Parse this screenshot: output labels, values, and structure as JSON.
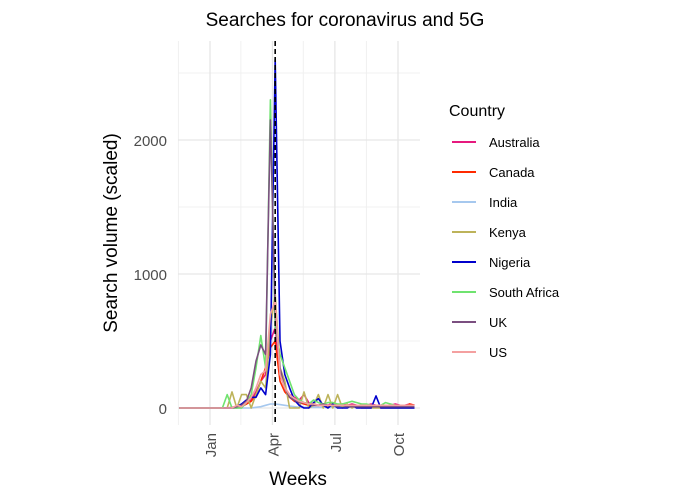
{
  "chart_data": {
    "type": "line",
    "title": "Searches for coronavirus and 5G",
    "xlabel": "Weeks",
    "ylabel": "Search volume (scaled)",
    "x_ticks": [
      {
        "label": "Jan",
        "date": "2020-01-01"
      },
      {
        "label": "Apr",
        "date": "2020-04-01"
      },
      {
        "label": "Jul",
        "date": "2020-07-01"
      },
      {
        "label": "Oct",
        "date": "2020-10-01"
      }
    ],
    "y_ticks": [
      0,
      1000,
      2000
    ],
    "ylim": [
      0,
      2600
    ],
    "xlim": [
      "2019-11-17",
      "2020-10-25"
    ],
    "grid": true,
    "vline": {
      "date": "2020-04-05",
      "style": "dashed",
      "color": "#000000"
    },
    "legend": {
      "title": "Country",
      "position": "right"
    },
    "x": [
      "2019-11-17",
      "2019-11-24",
      "2019-12-01",
      "2019-12-08",
      "2019-12-15",
      "2019-12-22",
      "2019-12-29",
      "2020-01-05",
      "2020-01-12",
      "2020-01-19",
      "2020-01-26",
      "2020-02-02",
      "2020-02-09",
      "2020-02-16",
      "2020-02-23",
      "2020-03-01",
      "2020-03-08",
      "2020-03-15",
      "2020-03-22",
      "2020-03-29",
      "2020-04-05",
      "2020-04-12",
      "2020-04-19",
      "2020-04-26",
      "2020-05-03",
      "2020-05-10",
      "2020-05-17",
      "2020-05-24",
      "2020-05-31",
      "2020-06-07",
      "2020-06-14",
      "2020-06-21",
      "2020-06-28",
      "2020-07-05",
      "2020-07-12",
      "2020-07-19",
      "2020-07-26",
      "2020-08-02",
      "2020-08-09",
      "2020-08-16",
      "2020-08-23",
      "2020-08-30",
      "2020-09-06",
      "2020-09-13",
      "2020-09-20",
      "2020-09-27",
      "2020-10-04",
      "2020-10-11",
      "2020-10-18",
      "2020-10-25"
    ],
    "series": [
      {
        "name": "Australia",
        "color": "#e6197e",
        "values": [
          0,
          0,
          0,
          0,
          0,
          0,
          0,
          0,
          0,
          0,
          0,
          5,
          10,
          20,
          40,
          60,
          120,
          200,
          250,
          500,
          600,
          250,
          150,
          100,
          80,
          60,
          100,
          40,
          30,
          20,
          30,
          20,
          40,
          20,
          30,
          20,
          30,
          20,
          20,
          20,
          30,
          20,
          20,
          20,
          20,
          30,
          20,
          20,
          30,
          20
        ]
      },
      {
        "name": "Canada",
        "color": "#ff2a00",
        "values": [
          0,
          0,
          0,
          0,
          0,
          0,
          0,
          0,
          0,
          0,
          0,
          0,
          0,
          10,
          30,
          50,
          100,
          200,
          300,
          450,
          500,
          200,
          120,
          80,
          50,
          40,
          30,
          20,
          20,
          20,
          20,
          10,
          20,
          10,
          20,
          10,
          10,
          10,
          10,
          10,
          10,
          10,
          10,
          10,
          10,
          10,
          10,
          10,
          30,
          20
        ]
      },
      {
        "name": "India",
        "color": "#a6c8ee",
        "values": [
          0,
          0,
          0,
          0,
          0,
          0,
          0,
          0,
          0,
          0,
          0,
          0,
          0,
          0,
          0,
          0,
          5,
          10,
          20,
          30,
          30,
          25,
          20,
          15,
          10,
          5,
          5,
          5,
          5,
          5,
          5,
          5,
          5,
          5,
          5,
          5,
          5,
          5,
          5,
          5,
          5,
          5,
          5,
          5,
          5,
          5,
          5,
          5,
          5,
          5
        ]
      },
      {
        "name": "Kenya",
        "color": "#bdb35a",
        "values": [
          0,
          0,
          0,
          0,
          0,
          0,
          0,
          0,
          0,
          0,
          0,
          120,
          0,
          100,
          100,
          0,
          100,
          200,
          150,
          600,
          850,
          300,
          200,
          0,
          0,
          0,
          120,
          0,
          20,
          100,
          0,
          100,
          0,
          100,
          0,
          30,
          0,
          20,
          0,
          0,
          0,
          0,
          0,
          0,
          0,
          0,
          0,
          0,
          0,
          0
        ]
      },
      {
        "name": "Nigeria",
        "color": "#0000cc",
        "values": [
          0,
          0,
          0,
          0,
          0,
          0,
          0,
          0,
          0,
          0,
          0,
          0,
          10,
          30,
          60,
          80,
          80,
          150,
          100,
          400,
          2600,
          500,
          250,
          150,
          60,
          20,
          0,
          0,
          40,
          70,
          20,
          0,
          30,
          0,
          0,
          0,
          20,
          0,
          0,
          0,
          0,
          90,
          0,
          0,
          0,
          0,
          0,
          0,
          0,
          0
        ]
      },
      {
        "name": "South Africa",
        "color": "#6fe36f",
        "values": [
          0,
          0,
          0,
          0,
          0,
          0,
          0,
          0,
          0,
          0,
          100,
          0,
          0,
          0,
          40,
          100,
          300,
          540,
          300,
          2300,
          600,
          400,
          300,
          200,
          100,
          60,
          40,
          30,
          60,
          40,
          30,
          40,
          40,
          30,
          30,
          40,
          50,
          40,
          30,
          30,
          20,
          20,
          20,
          40,
          30,
          20,
          20,
          10,
          10,
          10
        ]
      },
      {
        "name": "UK",
        "color": "#7b4f80",
        "values": [
          0,
          0,
          0,
          0,
          0,
          0,
          0,
          0,
          0,
          0,
          0,
          0,
          10,
          20,
          50,
          150,
          350,
          470,
          400,
          2150,
          700,
          300,
          150,
          80,
          60,
          40,
          40,
          30,
          20,
          20,
          30,
          20,
          20,
          10,
          20,
          10,
          10,
          10,
          10,
          10,
          10,
          10,
          10,
          10,
          10,
          10,
          10,
          10,
          10,
          10
        ]
      },
      {
        "name": "US",
        "color": "#f4a0a0",
        "values": [
          0,
          0,
          0,
          0,
          0,
          0,
          0,
          0,
          0,
          0,
          0,
          0,
          20,
          10,
          40,
          80,
          150,
          250,
          280,
          700,
          800,
          250,
          150,
          100,
          70,
          50,
          40,
          30,
          30,
          20,
          20,
          20,
          20,
          20,
          20,
          20,
          20,
          20,
          20,
          20,
          20,
          20,
          20,
          20,
          20,
          20,
          20,
          20,
          20,
          20
        ]
      }
    ]
  }
}
